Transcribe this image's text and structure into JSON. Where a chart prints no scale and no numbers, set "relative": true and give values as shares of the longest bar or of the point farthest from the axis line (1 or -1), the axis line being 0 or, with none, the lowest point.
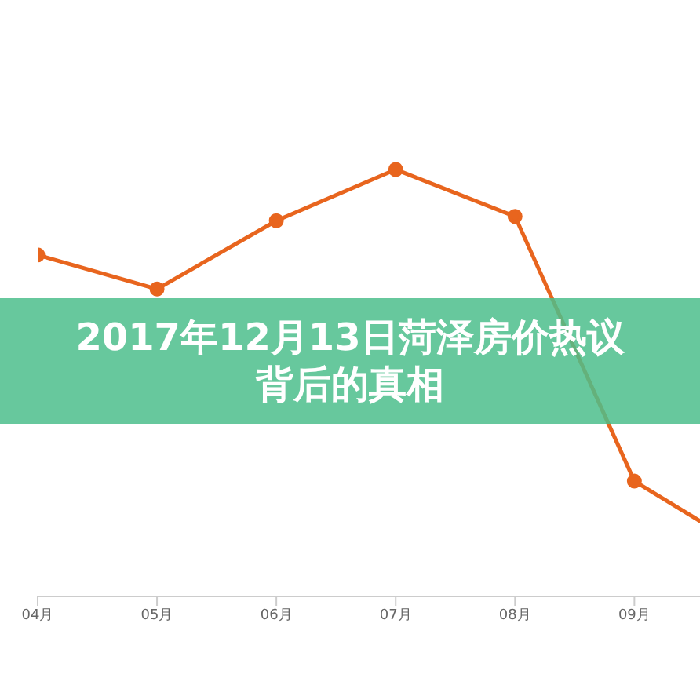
{
  "chart_data": {
    "type": "line",
    "title": "2017年12月13日菏泽房价热议背后的真相",
    "relative": true,
    "categories": [
      "04月",
      "05月",
      "06月",
      "07月",
      "08月",
      "09月",
      null
    ],
    "series": [
      {
        "color": "#e8651e",
        "values": [
          0.8,
          0.72,
          0.88,
          1,
          0.89,
          0.27,
          0.1
        ]
      }
    ],
    "marker": "circle",
    "line_style": "solid"
  }
}
